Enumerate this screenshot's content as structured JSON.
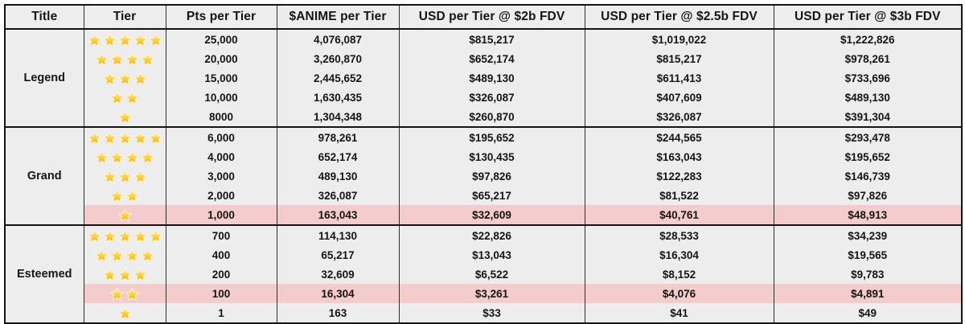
{
  "chart_data": {
    "type": "table",
    "columns": [
      "Title",
      "Tier",
      "Pts per Tier",
      "$ANIME per Tier",
      "USD per Tier @ $2b FDV",
      "USD per Tier @ $2.5b FDV",
      "USD per Tier @ $3b FDV"
    ],
    "tier_unit": "stars",
    "groups": [
      {
        "title": "Legend",
        "rows": [
          {
            "stars": 5,
            "pts": "25,000",
            "anime": "4,076,087",
            "usd_2b": "$815,217",
            "usd_2_5b": "$1,019,022",
            "usd_3b": "$1,222,826",
            "highlight": false
          },
          {
            "stars": 4,
            "pts": "20,000",
            "anime": "3,260,870",
            "usd_2b": "$652,174",
            "usd_2_5b": "$815,217",
            "usd_3b": "$978,261",
            "highlight": false
          },
          {
            "stars": 3,
            "pts": "15,000",
            "anime": "2,445,652",
            "usd_2b": "$489,130",
            "usd_2_5b": "$611,413",
            "usd_3b": "$733,696",
            "highlight": false
          },
          {
            "stars": 2,
            "pts": "10,000",
            "anime": "1,630,435",
            "usd_2b": "$326,087",
            "usd_2_5b": "$407,609",
            "usd_3b": "$489,130",
            "highlight": false
          },
          {
            "stars": 1,
            "pts": "8000",
            "anime": "1,304,348",
            "usd_2b": "$260,870",
            "usd_2_5b": "$326,087",
            "usd_3b": "$391,304",
            "highlight": false
          }
        ]
      },
      {
        "title": "Grand",
        "rows": [
          {
            "stars": 5,
            "pts": "6,000",
            "anime": "978,261",
            "usd_2b": "$195,652",
            "usd_2_5b": "$244,565",
            "usd_3b": "$293,478",
            "highlight": false
          },
          {
            "stars": 4,
            "pts": "4,000",
            "anime": "652,174",
            "usd_2b": "$130,435",
            "usd_2_5b": "$163,043",
            "usd_3b": "$195,652",
            "highlight": false
          },
          {
            "stars": 3,
            "pts": "3,000",
            "anime": "489,130",
            "usd_2b": "$97,826",
            "usd_2_5b": "$122,283",
            "usd_3b": "$146,739",
            "highlight": false
          },
          {
            "stars": 2,
            "pts": "2,000",
            "anime": "326,087",
            "usd_2b": "$65,217",
            "usd_2_5b": "$81,522",
            "usd_3b": "$97,826",
            "highlight": false
          },
          {
            "stars": 1,
            "pts": "1,000",
            "anime": "163,043",
            "usd_2b": "$32,609",
            "usd_2_5b": "$40,761",
            "usd_3b": "$48,913",
            "highlight": true
          }
        ]
      },
      {
        "title": "Esteemed",
        "rows": [
          {
            "stars": 5,
            "pts": "700",
            "anime": "114,130",
            "usd_2b": "$22,826",
            "usd_2_5b": "$28,533",
            "usd_3b": "$34,239",
            "highlight": false
          },
          {
            "stars": 4,
            "pts": "400",
            "anime": "65,217",
            "usd_2b": "$13,043",
            "usd_2_5b": "$16,304",
            "usd_3b": "$19,565",
            "highlight": false
          },
          {
            "stars": 3,
            "pts": "200",
            "anime": "32,609",
            "usd_2b": "$6,522",
            "usd_2_5b": "$8,152",
            "usd_3b": "$9,783",
            "highlight": false
          },
          {
            "stars": 2,
            "pts": "100",
            "anime": "16,304",
            "usd_2b": "$3,261",
            "usd_2_5b": "$4,076",
            "usd_3b": "$4,891",
            "highlight": true
          },
          {
            "stars": 1,
            "pts": "1",
            "anime": "163",
            "usd_2b": "$33",
            "usd_2_5b": "$41",
            "usd_3b": "$49",
            "highlight": false
          }
        ]
      }
    ]
  },
  "colors": {
    "cell_background": "#ededed",
    "highlight_row": "#f4cccc",
    "border": "#141414",
    "star_gold": "#f7b50c",
    "star_gold_light": "#ffe995",
    "star_outline": "#fdf3cf"
  }
}
